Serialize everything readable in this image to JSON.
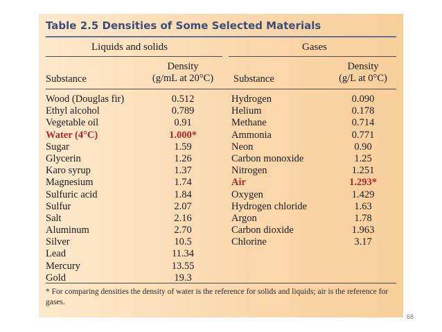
{
  "table": {
    "title": "Table 2.5  Densities of Some Selected Materials",
    "groups": {
      "liquids": "Liquids and solids",
      "gases": "Gases"
    },
    "headers": {
      "substance": "Substance",
      "density_liquids": [
        "Density",
        "(g/mL at 20°C)"
      ],
      "density_gases": [
        "Density",
        "(g/L at 0°C)"
      ]
    },
    "liquids": [
      {
        "substance": "Wood (Douglas fir)",
        "density": "0.512"
      },
      {
        "substance": "Ethyl alcohol",
        "density": "0.789"
      },
      {
        "substance": "Vegetable oil",
        "density": "0.91"
      },
      {
        "substance": "Water (4°C)",
        "density": "1.000*",
        "highlight": true
      },
      {
        "substance": "Sugar",
        "density": "1.59"
      },
      {
        "substance": "Glycerin",
        "density": "1.26"
      },
      {
        "substance": "Karo syrup",
        "density": "1.37"
      },
      {
        "substance": "Magnesium",
        "density": "1.74"
      },
      {
        "substance": "Sulfuric acid",
        "density": "1.84"
      },
      {
        "substance": "Sulfur",
        "density": "2.07"
      },
      {
        "substance": "Salt",
        "density": "2.16"
      },
      {
        "substance": "Aluminum",
        "density": "2.70"
      },
      {
        "substance": "Silver",
        "density": "10.5"
      },
      {
        "substance": "Lead",
        "density": "11.34"
      },
      {
        "substance": "Mercury",
        "density": "13.55"
      },
      {
        "substance": "Gold",
        "density": "19.3"
      }
    ],
    "gases": [
      {
        "substance": "Hydrogen",
        "density": "0.090"
      },
      {
        "substance": "Helium",
        "density": "0.178"
      },
      {
        "substance": "Methane",
        "density": "0.714"
      },
      {
        "substance": "Ammonia",
        "density": "0.771"
      },
      {
        "substance": "Neon",
        "density": "0.90"
      },
      {
        "substance": "Carbon monoxide",
        "density": "1.25"
      },
      {
        "substance": "Nitrogen",
        "density": "1.251"
      },
      {
        "substance": "Air",
        "density": "1.293*",
        "highlight": true
      },
      {
        "substance": "Oxygen",
        "density": "1.429"
      },
      {
        "substance": "Hydrogen chloride",
        "density": "1.63"
      },
      {
        "substance": "Argon",
        "density": "1.78"
      },
      {
        "substance": "Carbon dioxide",
        "density": "1.963"
      },
      {
        "substance": "Chlorine",
        "density": "3.17"
      }
    ],
    "footnote": "* For comparing densities the density of water is the reference for solids and liquids; air is the reference for gases.",
    "colors": {
      "title": "#3c4e78",
      "highlight": "#b8242a",
      "background": "#fad9ad"
    }
  },
  "page_number": "68"
}
